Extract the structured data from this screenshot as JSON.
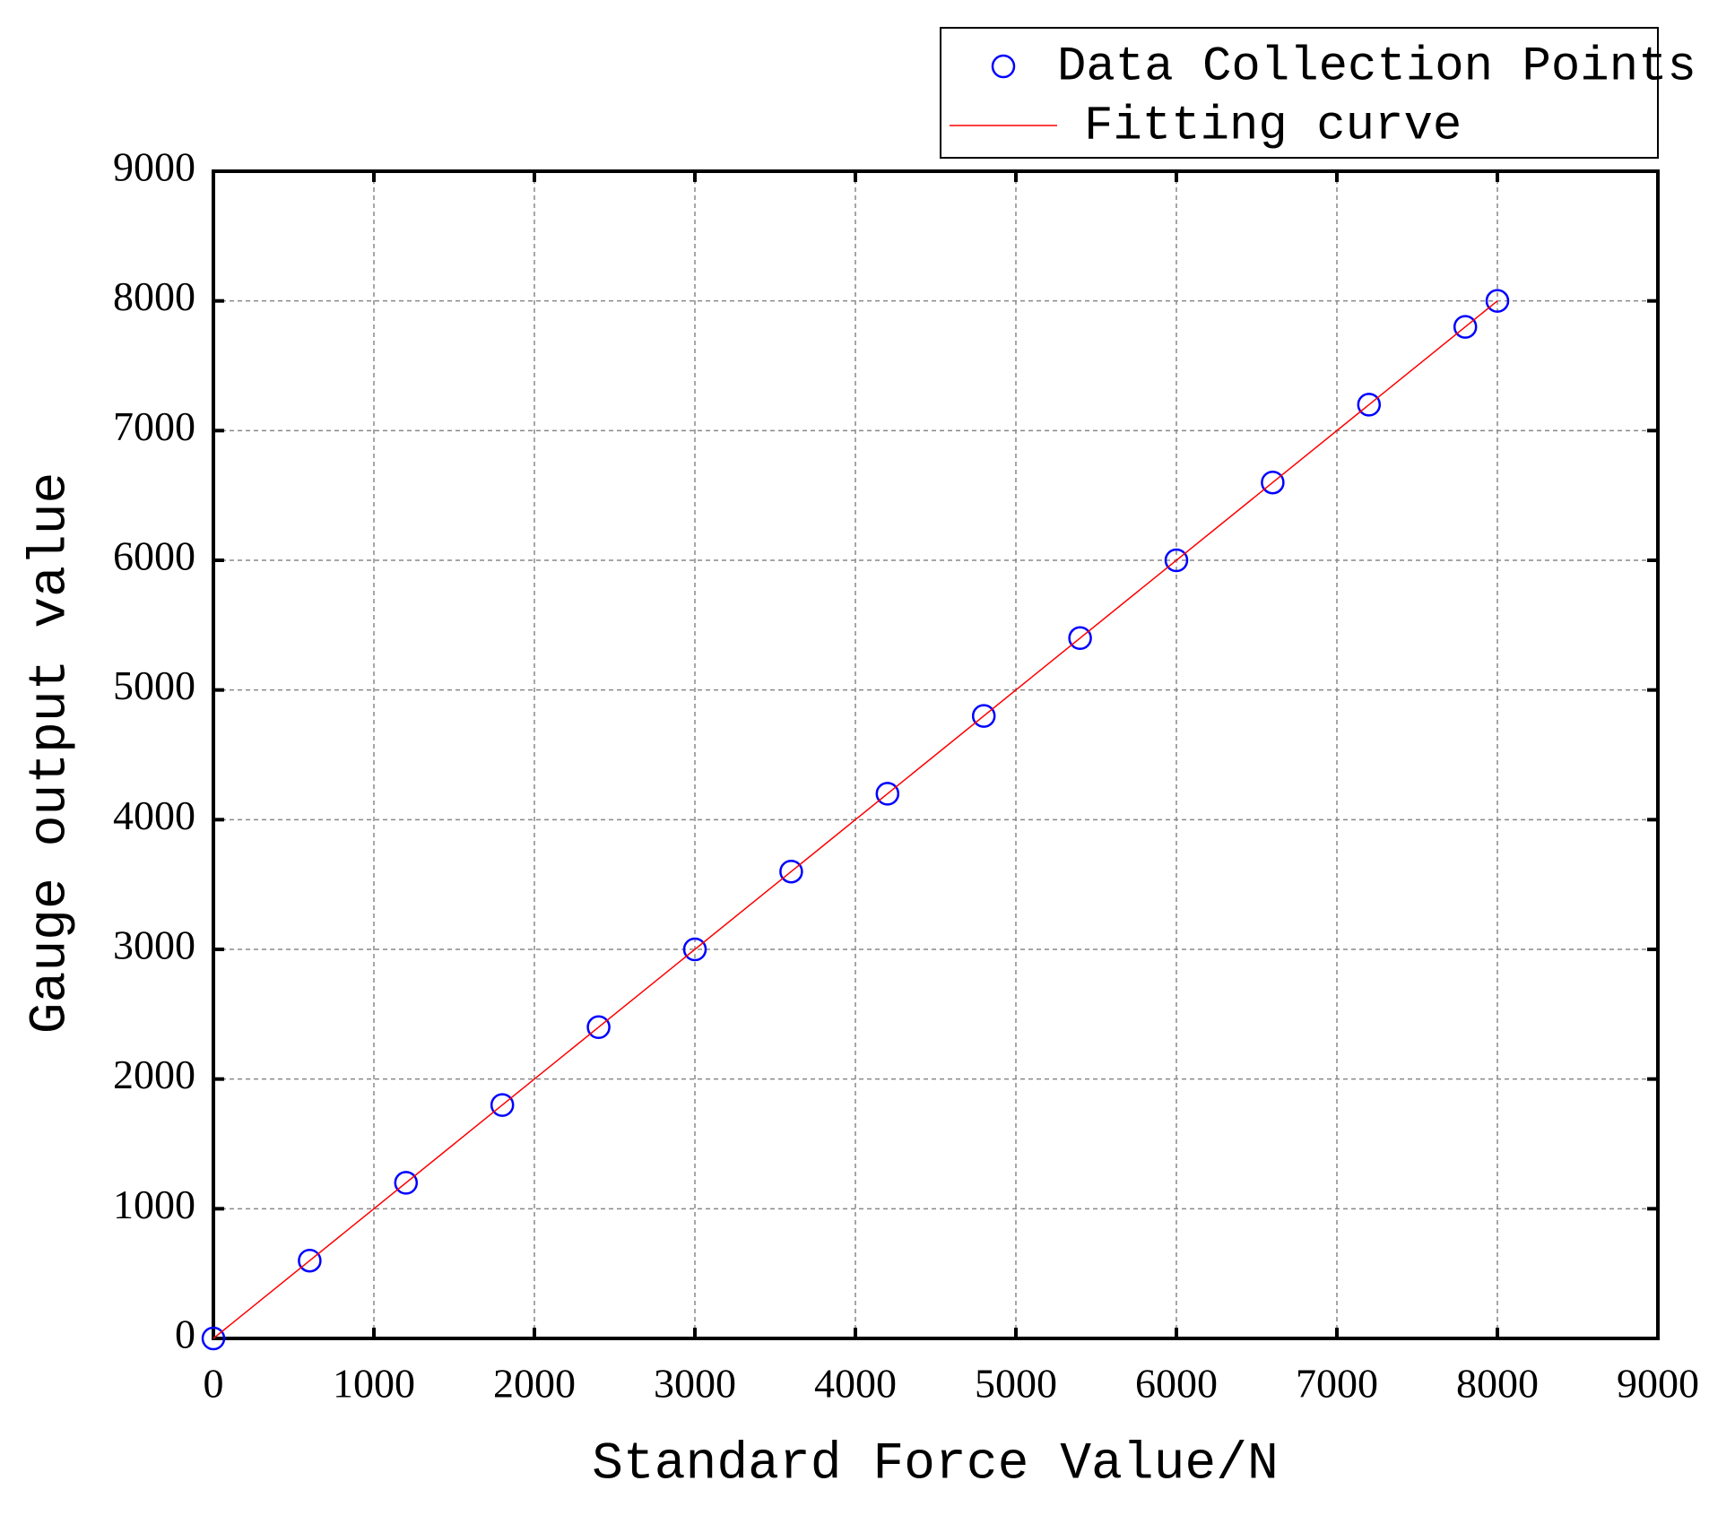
{
  "chart_data": {
    "type": "scatter",
    "x_label": "Standard Force Value/N",
    "y_label": "Gauge output value",
    "xlim": [
      0,
      9000
    ],
    "xticks": [
      0,
      1000,
      2000,
      3000,
      4000,
      5000,
      6000,
      7000,
      8000,
      9000
    ],
    "ylim": [
      0,
      9000
    ],
    "yticks": [
      0,
      1000,
      2000,
      3000,
      4000,
      5000,
      6000,
      7000,
      8000,
      9000
    ],
    "grid": true,
    "legend": "top-right",
    "series": [
      {
        "name": "Data Collection Points",
        "color": "#0000ff",
        "mode": "markers",
        "x": [
          0,
          600,
          1200,
          1800,
          2400,
          3000,
          3600,
          4200,
          4800,
          5400,
          6000,
          6600,
          7200,
          7800,
          8000
        ],
        "values": [
          0,
          600,
          1200,
          1800,
          2400,
          3000,
          3600,
          4200,
          4800,
          5400,
          6000,
          6600,
          7200,
          7800,
          8000
        ]
      },
      {
        "name": "Fitting curve",
        "color": "#ff0000",
        "mode": "line",
        "x": [
          0,
          8000
        ],
        "values": [
          0,
          8000
        ]
      }
    ]
  }
}
